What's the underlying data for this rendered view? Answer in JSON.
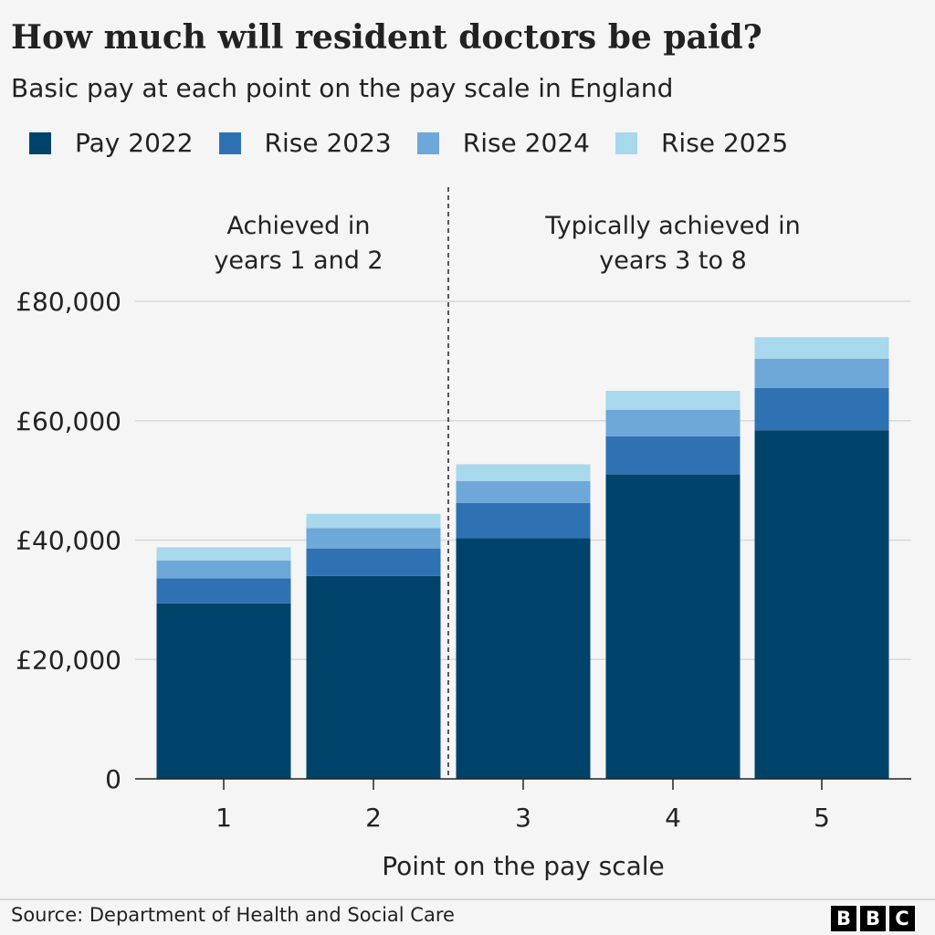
{
  "chart_data": {
    "type": "bar",
    "stacked": true,
    "title": "How much will resident doctors be paid?",
    "subtitle": "Basic pay at each point on the pay scale in England",
    "xlabel": "Point on the pay scale",
    "ylabel": "",
    "categories": [
      "1",
      "2",
      "3",
      "4",
      "5"
    ],
    "ylim": [
      0,
      80000
    ],
    "yticks": [
      0,
      20000,
      40000,
      60000,
      80000
    ],
    "ytick_labels": [
      "0",
      "£20,000",
      "£40,000",
      "£60,000",
      "£80,000"
    ],
    "grid": true,
    "legend_position": "top",
    "series": [
      {
        "name": "Pay 2022",
        "color": "#00436a",
        "cumulative_values": [
          29400,
          34000,
          40300,
          51000,
          58400
        ]
      },
      {
        "name": "Rise 2023",
        "color": "#2e72b4",
        "cumulative_values": [
          33600,
          38600,
          46200,
          57400,
          65500
        ]
      },
      {
        "name": "Rise 2024",
        "color": "#6ea8d8",
        "cumulative_values": [
          36600,
          42000,
          49900,
          61800,
          70400
        ]
      },
      {
        "name": "Rise 2025",
        "color": "#a8d8ec",
        "cumulative_values": [
          38800,
          44400,
          52700,
          65000,
          74000
        ]
      }
    ],
    "annotations": [
      {
        "lines": [
          "Achieved in",
          "years 1 and 2"
        ]
      },
      {
        "lines": [
          "Typically achieved in",
          "years 3 to 8"
        ]
      }
    ]
  },
  "source": "Source: Department of Health and Social Care",
  "logo": [
    "B",
    "B",
    "C"
  ]
}
